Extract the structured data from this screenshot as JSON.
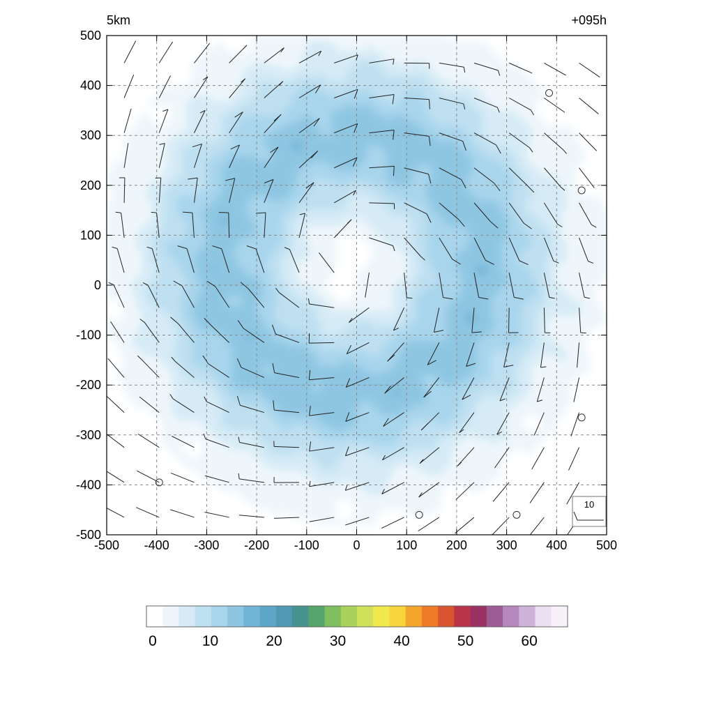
{
  "chart_data": [
    {
      "type": "heatmap",
      "title_left": "5km",
      "title_right": "+095h",
      "xlabel": "",
      "ylabel": "",
      "xlim": [
        -500,
        500
      ],
      "ylim": [
        -500,
        500
      ],
      "xticks": [
        "-500",
        "-400",
        "-300",
        "-200",
        "-100",
        "0",
        "100",
        "200",
        "300",
        "400",
        "500"
      ],
      "yticks": [
        "500",
        "400",
        "300",
        "200",
        "100",
        "0",
        "-100",
        "-200",
        "-300",
        "-400",
        "-500"
      ],
      "grid": true,
      "field": {
        "description_visible": "ring",
        "eye_center": [
          -10,
          40
        ],
        "ring_radius": 260,
        "ring_peak_value": 12,
        "background_value": 2
      },
      "wind_barbs": {
        "spacing": 70,
        "rotation": "counterclockwise",
        "reference_label": "10"
      },
      "calm_markers": [
        [
          385,
          385
        ],
        [
          450,
          190
        ],
        [
          -395,
          -395
        ],
        [
          450,
          -265
        ],
        [
          125,
          -460
        ],
        [
          320,
          -460
        ]
      ]
    },
    {
      "type": "colorbar",
      "range": [
        0,
        66
      ],
      "tick_labels": [
        "0",
        "10",
        "20",
        "30",
        "40",
        "50",
        "60"
      ],
      "tick_values": [
        0,
        10,
        20,
        30,
        40,
        50,
        60
      ],
      "colors": [
        "#ffffff",
        "#eef6fb",
        "#d6ebf6",
        "#bfe0f1",
        "#a8d5ec",
        "#8ec6e2",
        "#72b4d6",
        "#5ea6c8",
        "#4f99b4",
        "#46928f",
        "#55a46e",
        "#7fbe5e",
        "#a9d25b",
        "#cfe15a",
        "#f0ea4f",
        "#f6d63b",
        "#f4a52b",
        "#ec7a26",
        "#d9552f",
        "#b83448",
        "#993262",
        "#9d5c96",
        "#b488bd",
        "#cfb2d8",
        "#ebe0f1",
        "#f7f2fa"
      ]
    }
  ]
}
